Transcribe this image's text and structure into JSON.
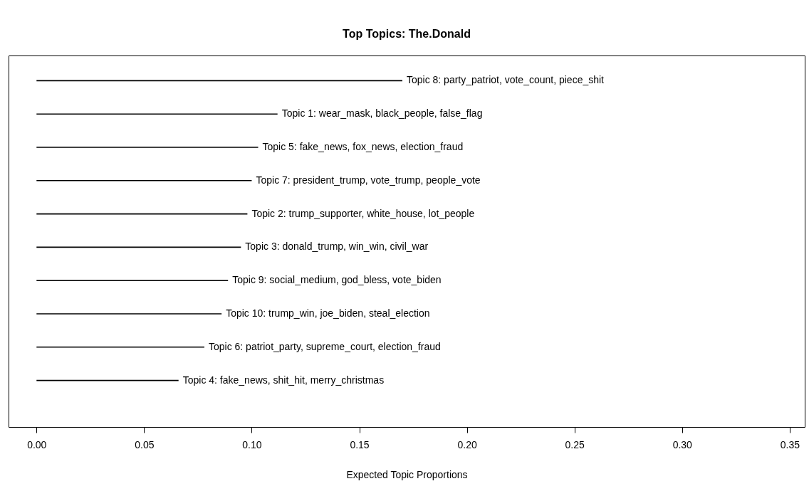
{
  "chart_data": {
    "type": "bar",
    "orientation": "horizontal",
    "title": "Top Topics: The.Donald",
    "xlabel": "Expected Topic Proportions",
    "categories": [
      "Topic 8: party_patriot, vote_count, piece_shit",
      "Topic 1: wear_mask, black_people, false_flag",
      "Topic 5: fake_news, fox_news, election_fraud",
      "Topic 7: president_trump, vote_trump, people_vote",
      "Topic 2: trump_supporter, white_house, lot_people",
      "Topic 3: donald_trump, win_win, civil_war",
      "Topic 9: social_medium, god_bless, vote_biden",
      "Topic 10: trump_win, joe_biden, steal_election",
      "Topic 6: patriot_party, supreme_court, election_fraud",
      "Topic 4: fake_news, shit_hit, merry_christmas"
    ],
    "values": [
      0.17,
      0.112,
      0.103,
      0.1,
      0.098,
      0.095,
      0.089,
      0.086,
      0.078,
      0.066
    ],
    "color": "#000000",
    "xlim": [
      -0.013,
      0.357
    ],
    "xticks": [
      {
        "value": 0,
        "label": "0.00"
      },
      {
        "value": 0.05,
        "label": "0.05"
      },
      {
        "value": 0.1,
        "label": "0.10"
      },
      {
        "value": 0.15,
        "label": "0.15"
      },
      {
        "value": 0.2,
        "label": "0.20"
      },
      {
        "value": 0.25,
        "label": "0.25"
      },
      {
        "value": 0.3,
        "label": "0.30"
      },
      {
        "value": 0.35,
        "label": "0.35"
      }
    ],
    "grid": false
  }
}
